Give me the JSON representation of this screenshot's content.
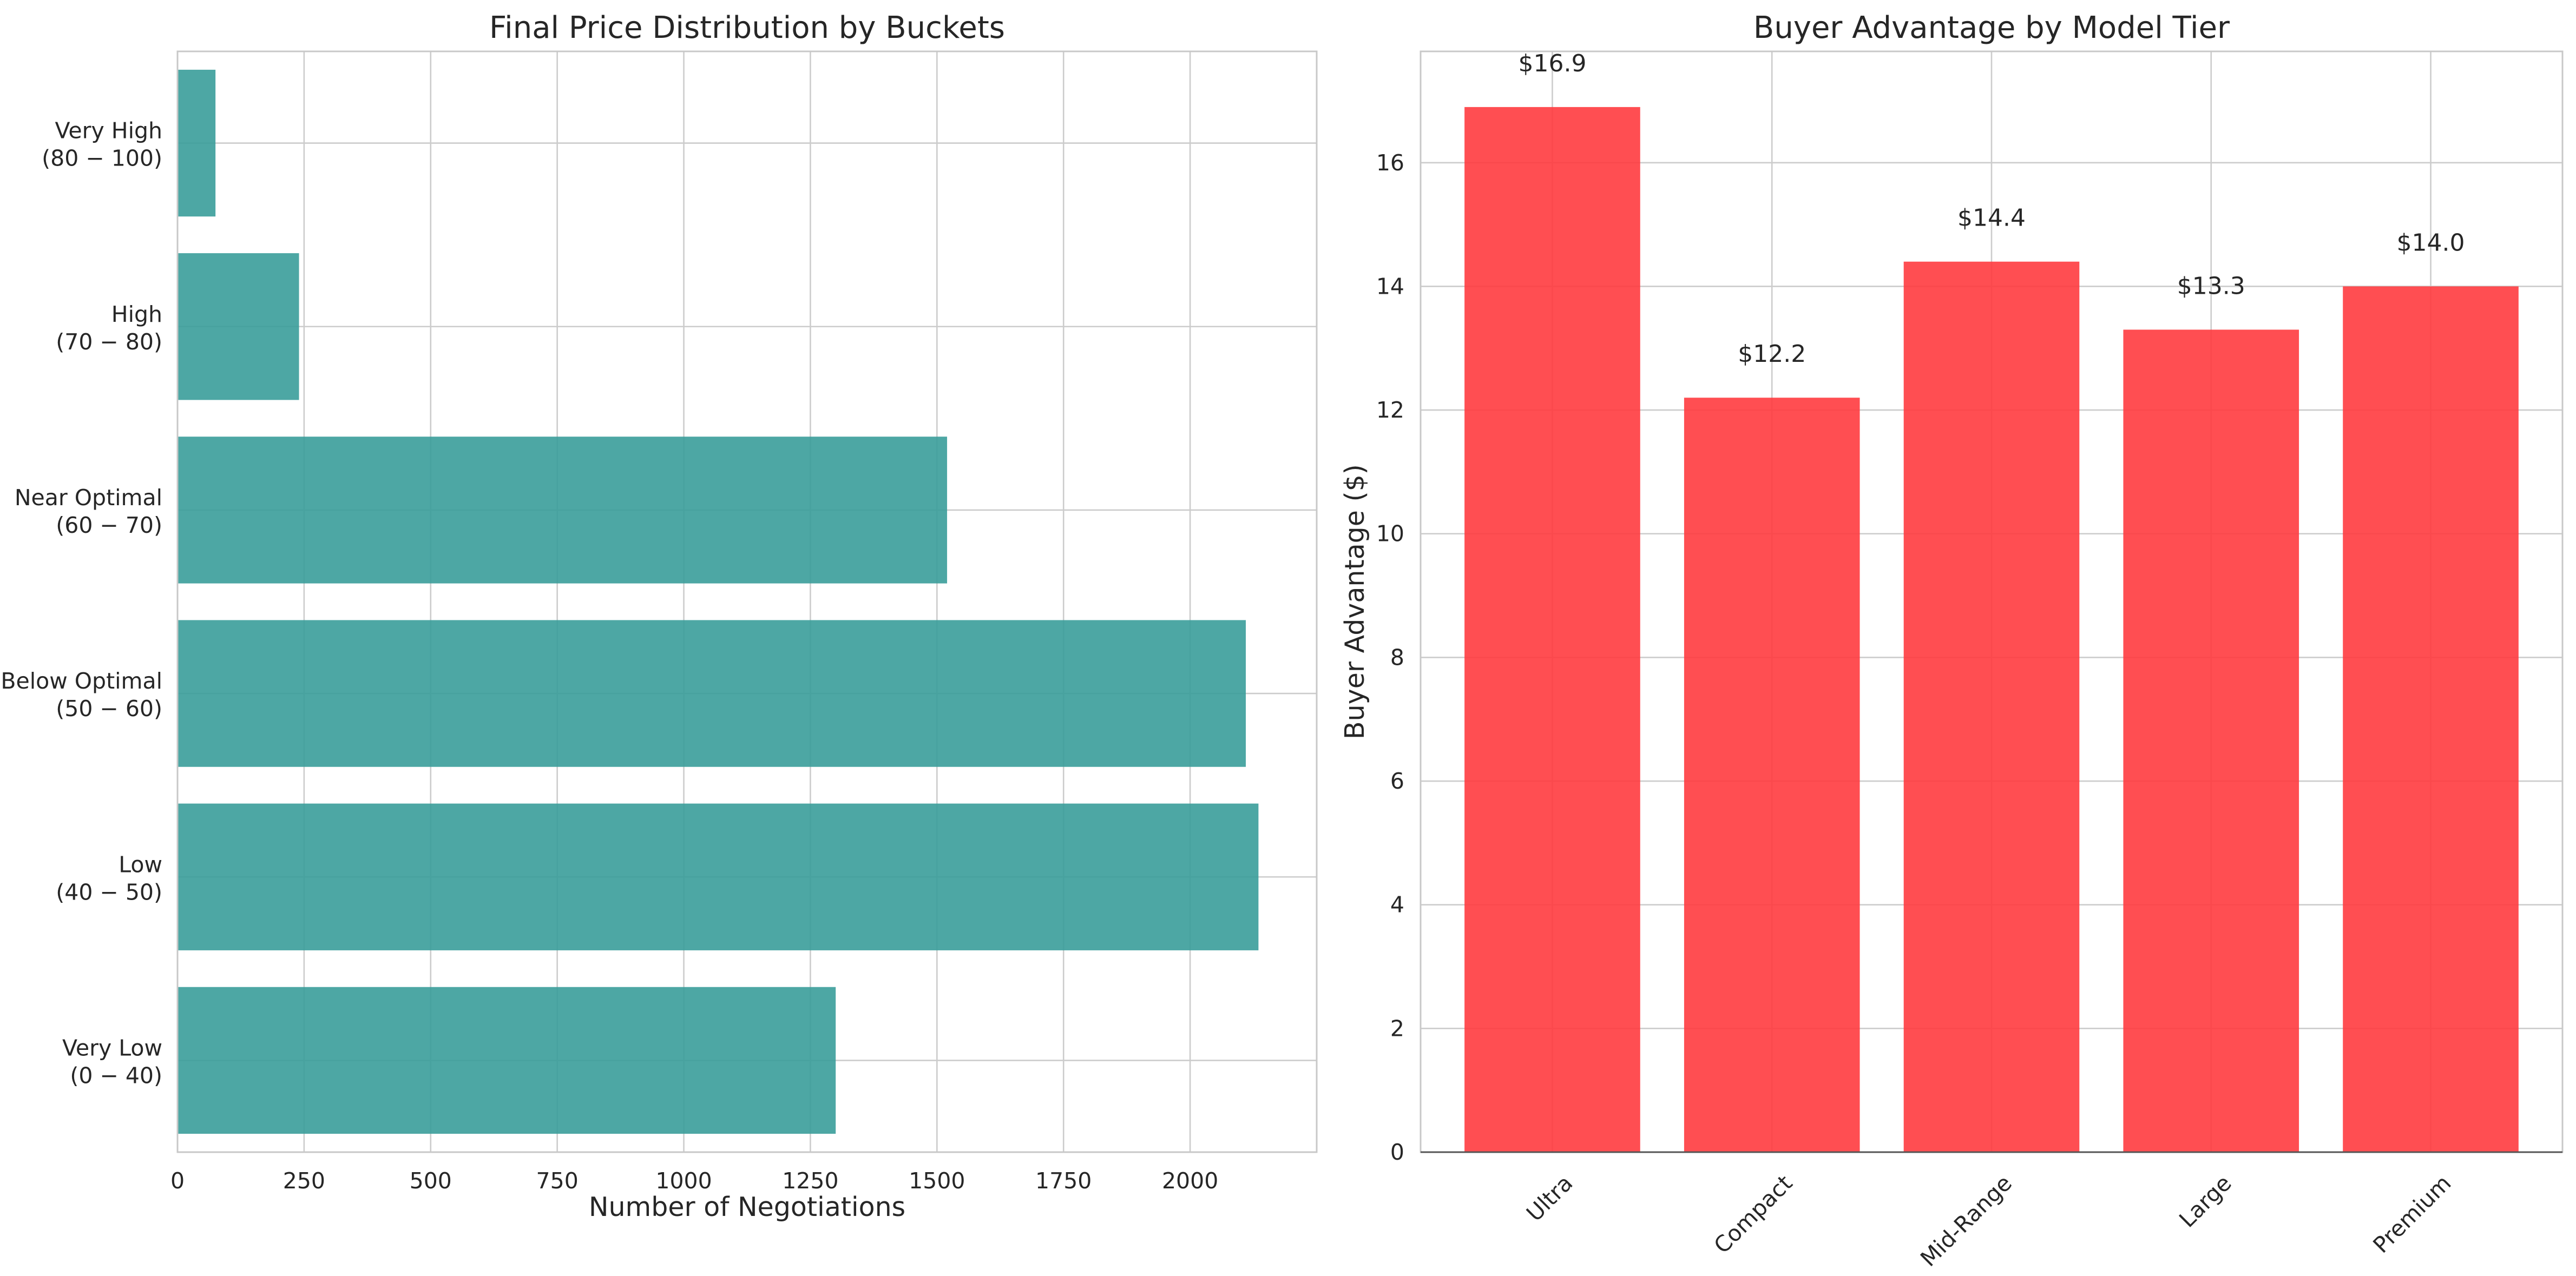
{
  "chart_data": [
    {
      "type": "bar",
      "orientation": "horizontal",
      "title": "Final Price Distribution by Buckets",
      "xlabel": "Number of Negotiations",
      "ylabel": "",
      "xlim": [
        0,
        2250
      ],
      "xticks": [
        0,
        250,
        500,
        750,
        1000,
        1250,
        1500,
        1750,
        2000
      ],
      "grid": true,
      "color": "#3a9d9a",
      "categories": [
        [
          "Very Low",
          "(0 − 40)"
        ],
        [
          "Low",
          "(40 − 50)"
        ],
        [
          "Below Optimal",
          "(50 − 60)"
        ],
        [
          "Near Optimal",
          "(60 − 70)"
        ],
        [
          "High",
          "(70 − 80)"
        ],
        [
          "Very High",
          "(80 − 100)"
        ]
      ],
      "values": [
        1300,
        2135,
        2110,
        1520,
        240,
        75
      ]
    },
    {
      "type": "bar",
      "orientation": "vertical",
      "title": "Buyer Advantage by Model Tier",
      "xlabel": "",
      "ylabel": "Buyer Advantage ($)",
      "ylim": [
        0,
        17.8
      ],
      "yticks": [
        0,
        2,
        4,
        6,
        8,
        10,
        12,
        14,
        16
      ],
      "grid": true,
      "color": "#ff3b3f",
      "categories": [
        "Ultra",
        "Compact",
        "Mid-Range",
        "Large",
        "Premium"
      ],
      "values": [
        16.9,
        12.2,
        14.4,
        13.3,
        14.0
      ],
      "data_labels": [
        "$16.9",
        "$12.2",
        "$14.4",
        "$13.3",
        "$14.0"
      ]
    }
  ]
}
